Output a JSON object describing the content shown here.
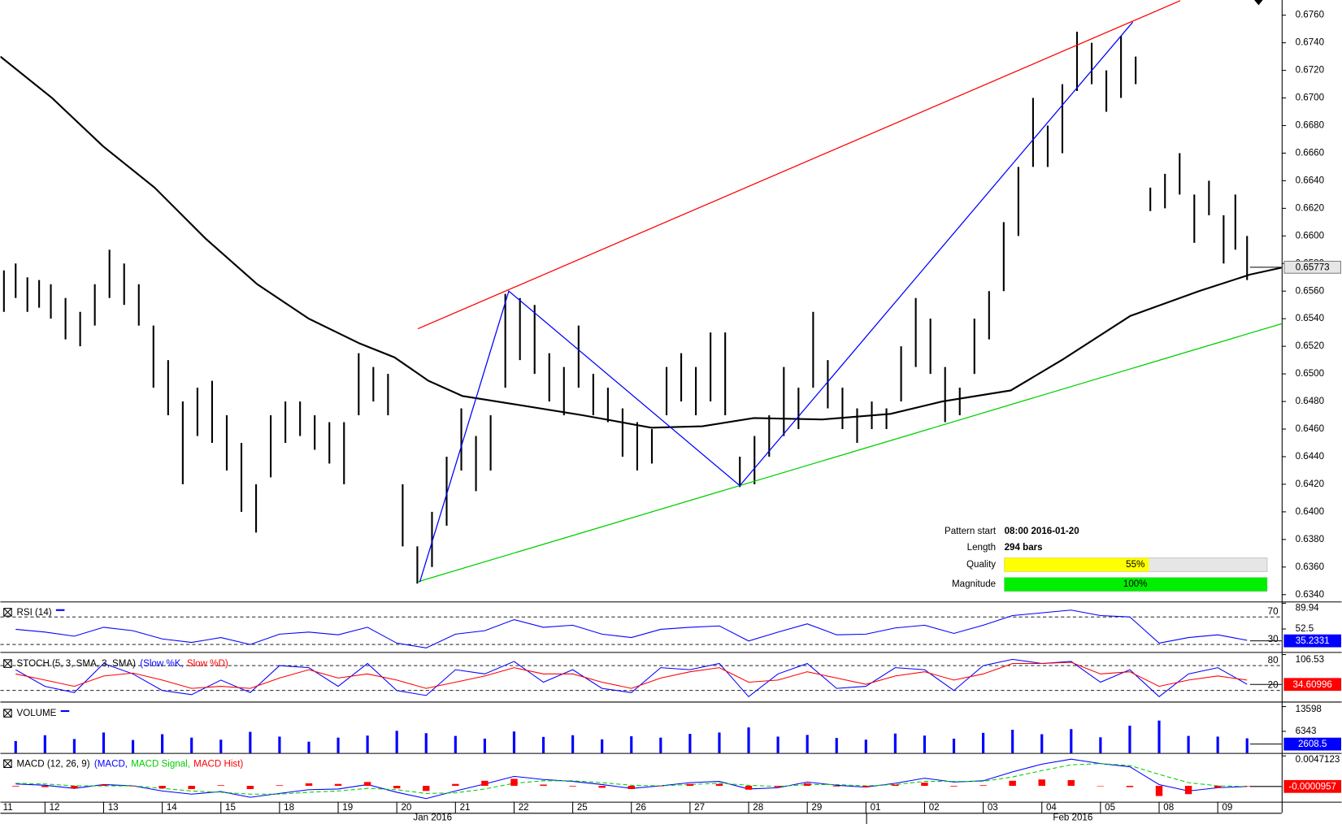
{
  "chart_data": [
    {
      "type": "ohlc",
      "color": "#000000",
      "x": [
        0.3,
        0.5,
        0.7,
        0.9,
        1.1,
        1.35,
        1.6,
        1.85,
        2.1,
        2.35,
        2.6,
        2.85,
        3.1,
        3.35,
        3.6,
        3.85,
        4.1,
        4.35,
        4.6,
        4.85,
        5.1,
        5.35,
        5.6,
        5.85,
        6.1,
        6.35,
        6.6,
        6.85,
        7.1,
        7.35,
        7.6,
        7.85,
        8.1,
        8.35,
        8.6,
        8.85,
        9.1,
        9.35,
        9.6,
        9.85,
        10.1,
        10.35,
        10.6,
        10.85,
        11.1,
        11.35,
        11.6,
        11.85,
        12.1,
        12.35,
        12.6,
        12.85,
        13.1,
        13.35,
        13.6,
        13.85,
        14.1,
        14.35,
        14.6,
        14.85,
        15.1,
        15.35,
        15.6,
        15.85,
        16.1,
        16.35,
        16.6,
        16.85,
        17.1,
        17.35,
        17.6,
        17.85,
        18.1,
        18.35,
        18.6,
        18.85,
        19.1,
        19.35,
        19.6,
        19.85,
        20.1,
        20.35,
        20.6,
        20.85,
        21.1,
        21.3,
        21.5
      ],
      "high": [
        0.6575,
        0.658,
        0.657,
        0.6568,
        0.6565,
        0.6555,
        0.6545,
        0.6565,
        0.659,
        0.658,
        0.6565,
        0.6535,
        0.651,
        0.648,
        0.649,
        0.6495,
        0.647,
        0.645,
        0.642,
        0.647,
        0.648,
        0.648,
        0.647,
        0.6465,
        0.6465,
        0.6515,
        0.6505,
        0.65,
        0.642,
        0.6375,
        0.64,
        0.644,
        0.6475,
        0.6455,
        0.647,
        0.6558,
        0.6555,
        0.655,
        0.6515,
        0.6505,
        0.6535,
        0.65,
        0.649,
        0.6475,
        0.6465,
        0.646,
        0.6505,
        0.6515,
        0.6505,
        0.653,
        0.653,
        0.644,
        0.6455,
        0.647,
        0.6505,
        0.649,
        0.6545,
        0.651,
        0.649,
        0.6475,
        0.648,
        0.6475,
        0.652,
        0.6555,
        0.654,
        0.6505,
        0.649,
        0.654,
        0.656,
        0.661,
        0.665,
        0.67,
        0.668,
        0.671,
        0.6748,
        0.674,
        0.672,
        0.6745,
        0.673,
        0.6635,
        0.6645,
        0.666,
        0.663,
        0.664,
        0.6615,
        0.663,
        0.66
      ],
      "low": [
        0.6545,
        0.6555,
        0.6545,
        0.6548,
        0.654,
        0.6525,
        0.652,
        0.6535,
        0.6555,
        0.655,
        0.6535,
        0.649,
        0.647,
        0.642,
        0.6455,
        0.645,
        0.643,
        0.64,
        0.6385,
        0.6425,
        0.645,
        0.6455,
        0.6445,
        0.6435,
        0.642,
        0.647,
        0.648,
        0.647,
        0.6375,
        0.6348,
        0.636,
        0.639,
        0.643,
        0.6415,
        0.643,
        0.649,
        0.651,
        0.65,
        0.648,
        0.647,
        0.649,
        0.647,
        0.6465,
        0.644,
        0.643,
        0.6435,
        0.647,
        0.648,
        0.647,
        0.648,
        0.647,
        0.6418,
        0.642,
        0.644,
        0.6455,
        0.646,
        0.649,
        0.6475,
        0.646,
        0.645,
        0.646,
        0.646,
        0.648,
        0.6505,
        0.65,
        0.6465,
        0.647,
        0.65,
        0.6525,
        0.656,
        0.66,
        0.665,
        0.665,
        0.666,
        0.6705,
        0.671,
        0.669,
        0.67,
        0.671,
        0.6618,
        0.662,
        0.663,
        0.6595,
        0.6615,
        0.658,
        0.659,
        0.6568
      ],
      "xlim": [
        0.24,
        22.09
      ],
      "xticks": [
        {
          "value": 0,
          "label": "11"
        },
        {
          "value": 1,
          "label": "12"
        },
        {
          "value": 2,
          "label": "13"
        },
        {
          "value": 3,
          "label": "14"
        },
        {
          "value": 4,
          "label": "15"
        },
        {
          "value": 5,
          "label": "18"
        },
        {
          "value": 6,
          "label": "19"
        },
        {
          "value": 7,
          "label": "20"
        },
        {
          "value": 8,
          "label": "21"
        },
        {
          "value": 9,
          "label": "22"
        },
        {
          "value": 10,
          "label": "25"
        },
        {
          "value": 11,
          "label": "26"
        },
        {
          "value": 12,
          "label": "27"
        },
        {
          "value": 13,
          "label": "28"
        },
        {
          "value": 14,
          "label": "29"
        },
        {
          "value": 15,
          "label": "01"
        },
        {
          "value": 16,
          "label": "02"
        },
        {
          "value": 17,
          "label": "03"
        },
        {
          "value": 18,
          "label": "04"
        },
        {
          "value": 19,
          "label": "05"
        },
        {
          "value": 20,
          "label": "08"
        },
        {
          "value": 21,
          "label": "09"
        }
      ],
      "month_labels": [
        "Jan 2016",
        "Feb 2016"
      ],
      "ylim": [
        0.6335,
        0.6771
      ],
      "yticks": [
        {
          "value": 0.634,
          "label": "0.6340"
        },
        {
          "value": 0.636,
          "label": "0.6360"
        },
        {
          "value": 0.638,
          "label": "0.6380"
        },
        {
          "value": 0.64,
          "label": "0.6400"
        },
        {
          "value": 0.642,
          "label": "0.6420"
        },
        {
          "value": 0.644,
          "label": "0.6440"
        },
        {
          "value": 0.646,
          "label": "0.6460"
        },
        {
          "value": 0.648,
          "label": "0.6480"
        },
        {
          "value": 0.65,
          "label": "0.6500"
        },
        {
          "value": 0.652,
          "label": "0.6520"
        },
        {
          "value": 0.654,
          "label": "0.6540"
        },
        {
          "value": 0.656,
          "label": "0.6560"
        },
        {
          "value": 0.658,
          "label": "0.6580"
        },
        {
          "value": 0.66,
          "label": "0.6600"
        },
        {
          "value": 0.662,
          "label": "0.6620"
        },
        {
          "value": 0.664,
          "label": "0.6640"
        },
        {
          "value": 0.666,
          "label": "0.6660"
        },
        {
          "value": 0.668,
          "label": "0.6680"
        },
        {
          "value": 0.67,
          "label": "0.6700"
        },
        {
          "value": 0.672,
          "label": "0.6720"
        },
        {
          "value": 0.674,
          "label": "0.6740"
        },
        {
          "value": 0.676,
          "label": "0.6760"
        }
      ],
      "last_value": 0.65773,
      "last_color": "#e6e6e6",
      "lines": [
        {
          "x": [
            0.24,
            1.12,
            1.99,
            2.87,
            3.74,
            4.62,
            5.5,
            6.37,
            6.96,
            7.54,
            8.12,
            9.0,
            10.17,
            11.34,
            12.21,
            13.09,
            14.26,
            15.42,
            16.3,
            17.47,
            18.34,
            19.51,
            20.68,
            21.55,
            22.09
          ],
          "values": [
            0.673,
            0.67,
            0.6665,
            0.6635,
            0.6598,
            0.6565,
            0.654,
            0.6522,
            0.6512,
            0.6495,
            0.6484,
            0.6478,
            0.647,
            0.6461,
            0.6462,
            0.6468,
            0.6467,
            0.6471,
            0.648,
            0.6488,
            0.651,
            0.6542,
            0.656,
            0.6572,
            0.6577
          ],
          "color": "#000000",
          "width": 2
        },
        {
          "x": [
            7.36,
            20.36
          ],
          "values": [
            0.65327,
            0.67705
          ],
          "color": "#ff0000",
          "width": 1.2
        },
        {
          "x": [
            7.36,
            22.09
          ],
          "values": [
            0.63493,
            0.65364
          ],
          "color": "#00d000",
          "width": 1.2
        },
        {
          "x": [
            7.39,
            8.91,
            12.85,
            19.55
          ],
          "values": [
            0.6349,
            0.656,
            0.6419,
            0.6755
          ],
          "color": "#0000ff",
          "width": 1.2
        }
      ],
      "pattern": {
        "start_label": "Pattern start",
        "start": "08:00 2016-01-20",
        "length_label": "Length",
        "length": "294 bars",
        "quality_label": "Quality",
        "quality": 55,
        "quality_value_label": "55%",
        "quality_color": "#ffff00",
        "magnitude_label": "Magnitude",
        "magnitude": 100,
        "magnitude_value_label": "100%",
        "magnitude_color": "#00ee00"
      }
    },
    {
      "type": "line",
      "title": "RSI (14)",
      "title_color": "#0000ff",
      "x": [
        0.5,
        1,
        1.5,
        2,
        2.5,
        3,
        3.5,
        4,
        4.5,
        5,
        5.5,
        6,
        6.5,
        7,
        7.5,
        8,
        8.5,
        9,
        9.5,
        10,
        10.5,
        11,
        11.5,
        12,
        12.5,
        13,
        13.5,
        14,
        14.5,
        15,
        15.5,
        16,
        16.5,
        17,
        17.5,
        18,
        18.5,
        19,
        19.5,
        20,
        20.5,
        21,
        21.5
      ],
      "xlim": [
        0.24,
        22.09
      ],
      "ylim": [
        19,
        89.94
      ],
      "yticks": [
        89.94,
        52.5
      ],
      "levels": [
        70,
        30
      ],
      "series": [
        {
          "color": "#0000ff",
          "values": [
            52,
            48,
            42,
            55,
            50,
            38,
            33,
            40,
            30,
            45,
            48,
            44,
            55,
            32,
            25,
            45,
            50,
            66,
            55,
            58,
            45,
            40,
            52,
            55,
            57,
            35,
            48,
            60,
            44,
            45,
            54,
            58,
            46,
            58,
            72,
            76,
            80,
            72,
            70,
            32,
            40,
            44,
            36
          ]
        }
      ],
      "last_value": 35.2331,
      "last_color": "#0000ff"
    },
    {
      "type": "line",
      "title": "STOCH (5, 3, SMA, 3, SMA)",
      "x": [
        0.5,
        1,
        1.5,
        2,
        2.5,
        3,
        3.5,
        4,
        4.5,
        5,
        5.5,
        6,
        6.5,
        7,
        7.5,
        8,
        8.5,
        9,
        9.5,
        10,
        10.5,
        11,
        11.5,
        12,
        12.5,
        13,
        13.5,
        14,
        14.5,
        15,
        15.5,
        16,
        16.5,
        17,
        17.5,
        18,
        18.5,
        19,
        19.5,
        20,
        20.5,
        21,
        21.5
      ],
      "xlim": [
        0.24,
        22.09
      ],
      "ylim": [
        -6.9,
        106.53
      ],
      "yticks": [
        106.53
      ],
      "levels": [
        80,
        20
      ],
      "series": [
        {
          "name": "(Slow %K,",
          "color": "#0000ff",
          "values": [
            70,
            30,
            15,
            85,
            60,
            20,
            10,
            45,
            15,
            80,
            75,
            30,
            85,
            20,
            8,
            70,
            60,
            90,
            40,
            70,
            25,
            15,
            75,
            70,
            85,
            5,
            60,
            85,
            25,
            30,
            75,
            70,
            20,
            80,
            95,
            85,
            90,
            40,
            70,
            5,
            60,
            75,
            35
          ]
        },
        {
          "name": "Slow %D)",
          "color": "#ff0000",
          "values": [
            60,
            45,
            30,
            55,
            62,
            45,
            25,
            30,
            25,
            50,
            70,
            50,
            60,
            45,
            25,
            40,
            55,
            75,
            60,
            60,
            40,
            25,
            50,
            65,
            75,
            40,
            45,
            65,
            50,
            35,
            55,
            65,
            45,
            60,
            85,
            85,
            88,
            60,
            65,
            30,
            45,
            55,
            45
          ]
        }
      ],
      "last_value": 34.60996,
      "last_color": "#ff0000"
    },
    {
      "type": "bar",
      "title": "VOLUME",
      "title_color": "#0000ff",
      "color": "#0000ff",
      "x": [
        0.5,
        1,
        1.5,
        2,
        2.5,
        3,
        3.5,
        4,
        4.5,
        5,
        5.5,
        6,
        6.5,
        7,
        7.5,
        8,
        8.5,
        9,
        9.5,
        10,
        10.5,
        11,
        11.5,
        12,
        12.5,
        13,
        13.5,
        14,
        14.5,
        15,
        15.5,
        16,
        16.5,
        17,
        17.5,
        18,
        18.5,
        19,
        19.5,
        20,
        20.5,
        21,
        21.5
      ],
      "xlim": [
        0.24,
        22.09
      ],
      "ylim": [
        0,
        14300
      ],
      "yticks": [
        13598,
        6343
      ],
      "values": [
        3500,
        5200,
        4100,
        6000,
        3800,
        5500,
        4500,
        3900,
        6200,
        4800,
        3300,
        4500,
        5100,
        6500,
        5800,
        5000,
        4200,
        6300,
        4700,
        5200,
        4000,
        4900,
        4500,
        5600,
        6000,
        7500,
        4800,
        5300,
        4400,
        3900,
        5700,
        5100,
        4200,
        5900,
        6800,
        5500,
        7000,
        4600,
        8000,
        9500,
        5000,
        4800,
        4300
      ],
      "last_value": 2608.5,
      "last_color": "#0000ff"
    },
    {
      "type": "line",
      "title": "MACD (12, 26, 9)",
      "x": [
        0.5,
        1,
        1.5,
        2,
        2.5,
        3,
        3.5,
        4,
        4.5,
        5,
        5.5,
        6,
        6.5,
        7,
        7.5,
        8,
        8.5,
        9,
        9.5,
        10,
        10.5,
        11,
        11.5,
        12,
        12.5,
        13,
        13.5,
        14,
        14.5,
        15,
        15.5,
        16,
        16.5,
        17,
        17.5,
        18,
        18.5,
        19,
        19.5,
        20,
        20.5,
        21,
        21.5
      ],
      "xlim": [
        0.24,
        22.09
      ],
      "ylim": [
        -0.0025,
        0.0049
      ],
      "yticks": [
        0.0047123
      ],
      "series": [
        {
          "name": "(MACD,",
          "color": "#0000ff",
          "values": [
            0.0003,
            0.0001,
            -0.0004,
            0.0002,
            0,
            -0.0008,
            -0.0013,
            -0.0009,
            -0.0018,
            -0.0012,
            -0.0006,
            -0.0005,
            0.0002,
            -0.001,
            -0.002,
            -0.0008,
            0.0003,
            0.0015,
            0.001,
            0.0007,
            0.0002,
            -0.0004,
            0,
            0.0005,
            0.0007,
            -0.0005,
            -0.0003,
            0.0006,
            0.0001,
            -0.0002,
            0.0004,
            0.0012,
            0.0006,
            0.0008,
            0.0022,
            0.0034,
            0.0042,
            0.0035,
            0.003,
            0.0002,
            -0.0008,
            -0.0003,
            -0.0001
          ]
        },
        {
          "name": "MACD Signal,",
          "color": "#00cc00",
          "dash": true,
          "values": [
            0.0004,
            0.0003,
            0,
            0,
            0,
            -0.0004,
            -0.0008,
            -0.001,
            -0.0013,
            -0.0013,
            -0.001,
            -0.0008,
            -0.0004,
            -0.0006,
            -0.0012,
            -0.0011,
            -0.0005,
            0.0004,
            0.0008,
            0.0008,
            0.0005,
            0.0001,
            0,
            0.0002,
            0.0004,
            0.0001,
            -0.0001,
            0.0002,
            0.0002,
            0,
            0.0002,
            0.0007,
            0.0007,
            0.0007,
            0.0014,
            0.0024,
            0.0033,
            0.0035,
            0.0032,
            0.0018,
            0.0005,
            0,
            -0.0001
          ]
        },
        {
          "name": "MACD Hist)",
          "color": "#ff0000",
          "type": "bar",
          "values": [
            -0.0001,
            -0.0002,
            -0.0004,
            0.0002,
            0,
            -0.0004,
            -0.0005,
            0.0001,
            -0.0005,
            0.0001,
            0.0004,
            0.0003,
            0.0006,
            -0.0004,
            -0.0008,
            0.0003,
            0.0008,
            0.0011,
            0.0002,
            -0.0001,
            -0.0003,
            -0.0005,
            0,
            0.0003,
            0.0003,
            -0.0006,
            -0.0002,
            0.0004,
            -0.0001,
            -0.0002,
            0.0002,
            0.0005,
            -0.0001,
            0.0001,
            0.0008,
            0.001,
            0.0009,
            0,
            -0.0002,
            -0.0016,
            -0.0013,
            -0.0003,
            0
          ]
        }
      ],
      "last_value": -9.57e-05,
      "last_color": "#ff0000"
    }
  ]
}
